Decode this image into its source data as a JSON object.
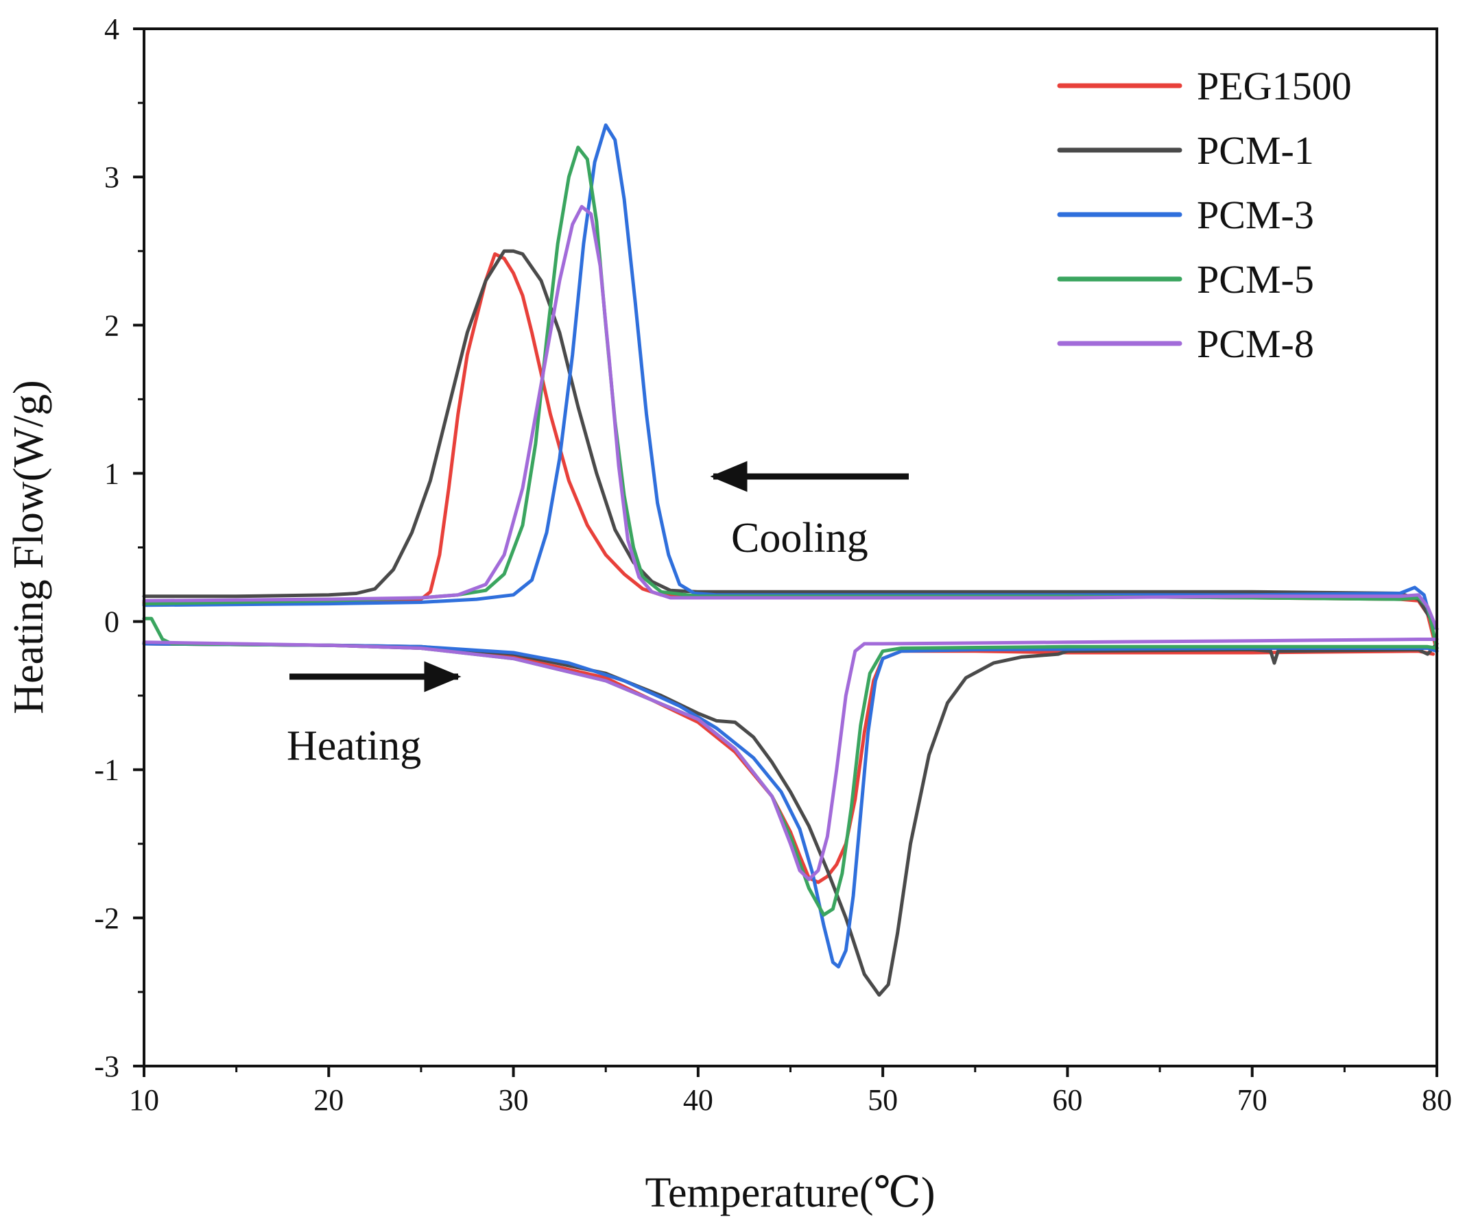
{
  "chart_data": {
    "type": "line",
    "title": "",
    "xlabel": "Temperature(℃)",
    "ylabel": "Heating Flow(W/g)",
    "xlim": [
      10,
      80
    ],
    "ylim": [
      -3,
      4
    ],
    "xticks": [
      10,
      20,
      30,
      40,
      50,
      60,
      70,
      80
    ],
    "yticks": [
      -3,
      -2,
      -1,
      0,
      1,
      2,
      3,
      4
    ],
    "xtick_labels": [
      "10",
      "20",
      "30",
      "40",
      "50",
      "60",
      "70",
      "80"
    ],
    "ytick_labels": [
      "-3",
      "-2",
      "-1",
      "0",
      "1",
      "2",
      "3",
      "4"
    ],
    "grid": false,
    "legend_position": "top-right",
    "annotations": [
      {
        "text": "Cooling",
        "arrow": "left",
        "x": 43.5,
        "y": 0.95
      },
      {
        "text": "Heating",
        "arrow": "right",
        "x": 17.5,
        "y": -0.38
      }
    ],
    "series": [
      {
        "name": "PEG1500",
        "color": "#e8403a",
        "cooling": [
          [
            10,
            0.13
          ],
          [
            20,
            0.14
          ],
          [
            25,
            0.15
          ],
          [
            25.5,
            0.2
          ],
          [
            26,
            0.45
          ],
          [
            26.5,
            0.9
          ],
          [
            27,
            1.4
          ],
          [
            27.5,
            1.8
          ],
          [
            28,
            2.05
          ],
          [
            28.5,
            2.3
          ],
          [
            29,
            2.48
          ],
          [
            29.5,
            2.45
          ],
          [
            30,
            2.35
          ],
          [
            30.5,
            2.2
          ],
          [
            31,
            1.95
          ],
          [
            32,
            1.4
          ],
          [
            33,
            0.95
          ],
          [
            34,
            0.65
          ],
          [
            35,
            0.45
          ],
          [
            36,
            0.32
          ],
          [
            37,
            0.22
          ],
          [
            38,
            0.18
          ],
          [
            40,
            0.17
          ],
          [
            50,
            0.17
          ],
          [
            60,
            0.17
          ],
          [
            70,
            0.16
          ],
          [
            78,
            0.15
          ],
          [
            79,
            0.14
          ],
          [
            79.5,
            0.05
          ],
          [
            80,
            -0.2
          ]
        ],
        "heating": [
          [
            10,
            -0.15
          ],
          [
            20,
            -0.16
          ],
          [
            25,
            -0.18
          ],
          [
            30,
            -0.24
          ],
          [
            35,
            -0.38
          ],
          [
            40,
            -0.68
          ],
          [
            42,
            -0.88
          ],
          [
            44,
            -1.18
          ],
          [
            45,
            -1.42
          ],
          [
            45.5,
            -1.58
          ],
          [
            46,
            -1.73
          ],
          [
            46.5,
            -1.76
          ],
          [
            47,
            -1.72
          ],
          [
            47.5,
            -1.64
          ],
          [
            48,
            -1.5
          ],
          [
            48.5,
            -1.2
          ],
          [
            49,
            -0.75
          ],
          [
            49.5,
            -0.4
          ],
          [
            50,
            -0.25
          ],
          [
            51,
            -0.2
          ],
          [
            55,
            -0.2
          ],
          [
            60,
            -0.21
          ],
          [
            70,
            -0.21
          ],
          [
            79,
            -0.2
          ],
          [
            79.8,
            -0.22
          ]
        ]
      },
      {
        "name": "PCM-1",
        "color": "#4a4a4a",
        "cooling": [
          [
            10,
            0.17
          ],
          [
            15,
            0.17
          ],
          [
            20,
            0.18
          ],
          [
            21.5,
            0.19
          ],
          [
            22.5,
            0.22
          ],
          [
            23.5,
            0.35
          ],
          [
            24.5,
            0.6
          ],
          [
            25.5,
            0.95
          ],
          [
            26.5,
            1.45
          ],
          [
            27.5,
            1.95
          ],
          [
            28.5,
            2.3
          ],
          [
            29.5,
            2.5
          ],
          [
            30,
            2.5
          ],
          [
            30.5,
            2.48
          ],
          [
            31.5,
            2.3
          ],
          [
            32.5,
            1.95
          ],
          [
            33.5,
            1.45
          ],
          [
            34.5,
            1.0
          ],
          [
            35.5,
            0.62
          ],
          [
            36.5,
            0.4
          ],
          [
            37.5,
            0.27
          ],
          [
            38.5,
            0.21
          ],
          [
            40,
            0.2
          ],
          [
            50,
            0.2
          ],
          [
            60,
            0.2
          ],
          [
            70,
            0.2
          ],
          [
            78,
            0.19
          ],
          [
            79,
            0.15
          ],
          [
            79.5,
            0.05
          ],
          [
            80,
            -0.05
          ]
        ],
        "heating": [
          [
            10,
            -0.15
          ],
          [
            20,
            -0.16
          ],
          [
            25,
            -0.17
          ],
          [
            30,
            -0.22
          ],
          [
            35,
            -0.35
          ],
          [
            38,
            -0.5
          ],
          [
            40,
            -0.62
          ],
          [
            41,
            -0.67
          ],
          [
            42,
            -0.68
          ],
          [
            43,
            -0.78
          ],
          [
            44,
            -0.95
          ],
          [
            45,
            -1.15
          ],
          [
            46,
            -1.38
          ],
          [
            47,
            -1.68
          ],
          [
            48,
            -2.0
          ],
          [
            49,
            -2.38
          ],
          [
            49.8,
            -2.52
          ],
          [
            50.3,
            -2.45
          ],
          [
            50.8,
            -2.1
          ],
          [
            51.5,
            -1.5
          ],
          [
            52.5,
            -0.9
          ],
          [
            53.5,
            -0.55
          ],
          [
            54.5,
            -0.38
          ],
          [
            56,
            -0.28
          ],
          [
            57.5,
            -0.24
          ],
          [
            59.5,
            -0.22
          ],
          [
            60,
            -0.2
          ],
          [
            70,
            -0.19
          ],
          [
            71,
            -0.2
          ],
          [
            71.2,
            -0.28
          ],
          [
            71.4,
            -0.2
          ],
          [
            79,
            -0.19
          ],
          [
            79.5,
            -0.22
          ],
          [
            80,
            -0.15
          ]
        ]
      },
      {
        "name": "PCM-3",
        "color": "#2f6fdc",
        "cooling": [
          [
            10,
            0.11
          ],
          [
            20,
            0.12
          ],
          [
            25,
            0.13
          ],
          [
            28,
            0.15
          ],
          [
            30,
            0.18
          ],
          [
            31,
            0.28
          ],
          [
            31.8,
            0.6
          ],
          [
            32.5,
            1.1
          ],
          [
            33.2,
            1.8
          ],
          [
            33.8,
            2.55
          ],
          [
            34.4,
            3.1
          ],
          [
            35,
            3.35
          ],
          [
            35.5,
            3.25
          ],
          [
            36,
            2.85
          ],
          [
            36.6,
            2.15
          ],
          [
            37.2,
            1.4
          ],
          [
            37.8,
            0.8
          ],
          [
            38.4,
            0.45
          ],
          [
            39,
            0.25
          ],
          [
            39.8,
            0.19
          ],
          [
            41,
            0.18
          ],
          [
            50,
            0.18
          ],
          [
            60,
            0.18
          ],
          [
            70,
            0.18
          ],
          [
            78,
            0.19
          ],
          [
            78.8,
            0.23
          ],
          [
            79.3,
            0.18
          ],
          [
            79.8,
            -0.05
          ]
        ],
        "heating": [
          [
            10,
            -0.15
          ],
          [
            20,
            -0.16
          ],
          [
            25,
            -0.17
          ],
          [
            30,
            -0.21
          ],
          [
            33,
            -0.28
          ],
          [
            36,
            -0.4
          ],
          [
            39,
            -0.57
          ],
          [
            41,
            -0.72
          ],
          [
            43,
            -0.92
          ],
          [
            44.5,
            -1.15
          ],
          [
            45.5,
            -1.4
          ],
          [
            46.2,
            -1.7
          ],
          [
            46.8,
            -2.05
          ],
          [
            47.3,
            -2.3
          ],
          [
            47.6,
            -2.33
          ],
          [
            48,
            -2.22
          ],
          [
            48.4,
            -1.85
          ],
          [
            48.8,
            -1.3
          ],
          [
            49.2,
            -0.75
          ],
          [
            49.6,
            -0.4
          ],
          [
            50,
            -0.25
          ],
          [
            51,
            -0.2
          ],
          [
            55,
            -0.19
          ],
          [
            70,
            -0.18
          ],
          [
            79.5,
            -0.18
          ],
          [
            80,
            -0.2
          ]
        ]
      },
      {
        "name": "PCM-5",
        "color": "#3aa55f",
        "cooling": [
          [
            10,
            0.12
          ],
          [
            15,
            0.13
          ],
          [
            20,
            0.14
          ],
          [
            25,
            0.16
          ],
          [
            27,
            0.18
          ],
          [
            28.5,
            0.21
          ],
          [
            29.5,
            0.32
          ],
          [
            30.5,
            0.65
          ],
          [
            31.2,
            1.2
          ],
          [
            31.8,
            1.9
          ],
          [
            32.4,
            2.55
          ],
          [
            33,
            3.0
          ],
          [
            33.5,
            3.2
          ],
          [
            34,
            3.12
          ],
          [
            34.5,
            2.7
          ],
          [
            35,
            2.0
          ],
          [
            35.5,
            1.35
          ],
          [
            36,
            0.85
          ],
          [
            36.5,
            0.5
          ],
          [
            37,
            0.3
          ],
          [
            38,
            0.2
          ],
          [
            40,
            0.17
          ],
          [
            50,
            0.17
          ],
          [
            60,
            0.17
          ],
          [
            70,
            0.16
          ],
          [
            78,
            0.15
          ],
          [
            79,
            0.16
          ],
          [
            79.5,
            0.1
          ],
          [
            80,
            -0.18
          ]
        ],
        "heating": [
          [
            10,
            0.02
          ],
          [
            10.4,
            0.02
          ],
          [
            11,
            -0.12
          ],
          [
            11.5,
            -0.15
          ],
          [
            20,
            -0.16
          ],
          [
            25,
            -0.18
          ],
          [
            30,
            -0.25
          ],
          [
            35,
            -0.4
          ],
          [
            40,
            -0.66
          ],
          [
            42,
            -0.86
          ],
          [
            44,
            -1.18
          ],
          [
            45,
            -1.45
          ],
          [
            46,
            -1.8
          ],
          [
            46.8,
            -1.98
          ],
          [
            47.3,
            -1.94
          ],
          [
            47.8,
            -1.7
          ],
          [
            48.3,
            -1.25
          ],
          [
            48.8,
            -0.7
          ],
          [
            49.3,
            -0.35
          ],
          [
            50,
            -0.2
          ],
          [
            51,
            -0.18
          ],
          [
            60,
            -0.17
          ],
          [
            70,
            -0.17
          ],
          [
            79.5,
            -0.17
          ],
          [
            80,
            -0.18
          ]
        ]
      },
      {
        "name": "PCM-8",
        "color": "#a26bd9",
        "cooling": [
          [
            10,
            0.14
          ],
          [
            20,
            0.15
          ],
          [
            25,
            0.16
          ],
          [
            27,
            0.18
          ],
          [
            28.5,
            0.25
          ],
          [
            29.5,
            0.45
          ],
          [
            30.5,
            0.9
          ],
          [
            31.5,
            1.6
          ],
          [
            32.5,
            2.3
          ],
          [
            33.2,
            2.68
          ],
          [
            33.7,
            2.8
          ],
          [
            34.2,
            2.75
          ],
          [
            34.7,
            2.4
          ],
          [
            35.2,
            1.75
          ],
          [
            35.7,
            1.05
          ],
          [
            36.2,
            0.55
          ],
          [
            36.8,
            0.3
          ],
          [
            37.5,
            0.2
          ],
          [
            38.5,
            0.16
          ],
          [
            40,
            0.16
          ],
          [
            50,
            0.16
          ],
          [
            60,
            0.16
          ],
          [
            70,
            0.17
          ],
          [
            78,
            0.17
          ],
          [
            79,
            0.18
          ],
          [
            79.5,
            0.1
          ],
          [
            80,
            -0.05
          ]
        ],
        "heating": [
          [
            10,
            -0.14
          ],
          [
            20,
            -0.16
          ],
          [
            25,
            -0.18
          ],
          [
            30,
            -0.25
          ],
          [
            35,
            -0.4
          ],
          [
            40,
            -0.66
          ],
          [
            42,
            -0.86
          ],
          [
            44,
            -1.18
          ],
          [
            45,
            -1.5
          ],
          [
            45.5,
            -1.68
          ],
          [
            46,
            -1.74
          ],
          [
            46.5,
            -1.68
          ],
          [
            47,
            -1.45
          ],
          [
            47.5,
            -1.0
          ],
          [
            48,
            -0.5
          ],
          [
            48.5,
            -0.2
          ],
          [
            49,
            -0.15
          ],
          [
            50,
            -0.15
          ],
          [
            60,
            -0.14
          ],
          [
            70,
            -0.13
          ],
          [
            79,
            -0.12
          ],
          [
            80,
            -0.12
          ]
        ]
      }
    ]
  }
}
